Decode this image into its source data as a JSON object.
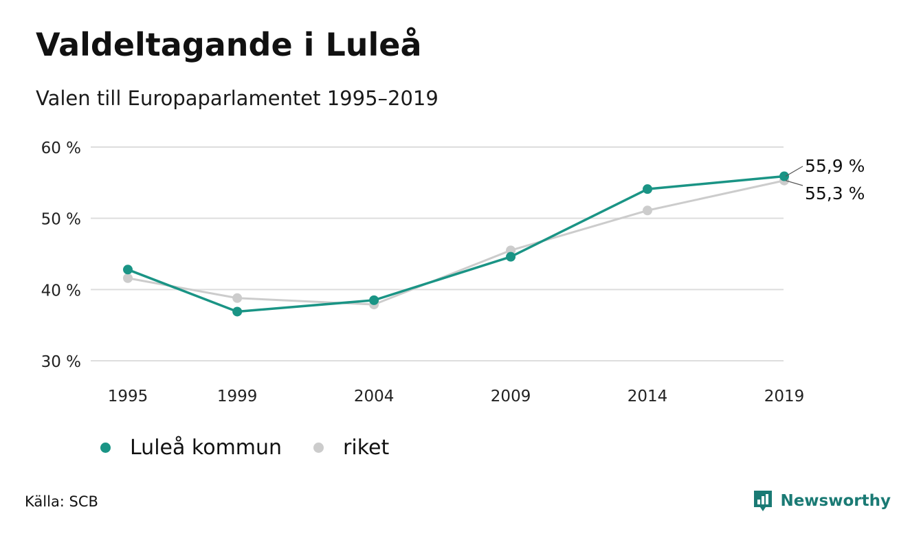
{
  "title": "Valdeltagande i Luleå",
  "subtitle": "Valen till Europaparlamentet 1995–2019",
  "source": "Källa: SCB",
  "brand": "Newsworthy",
  "colors": {
    "lulea": "#1a9485",
    "riket": "#cccccc",
    "grid": "#dddddd",
    "brand": "#1a7a74"
  },
  "chart_data": {
    "type": "line",
    "x": [
      1995,
      1999,
      2004,
      2009,
      2014,
      2019
    ],
    "x_labels": [
      "1995",
      "1999",
      "2004",
      "2009",
      "2014",
      "2019"
    ],
    "y_ticks": [
      30,
      40,
      50,
      60
    ],
    "y_tick_labels": [
      "30 %",
      "40 %",
      "50 %",
      "60 %"
    ],
    "ylim": [
      30,
      60
    ],
    "grid": true,
    "legend_placement": "bottom-left",
    "series": [
      {
        "name": "Luleå kommun",
        "color": "#1a9485",
        "values": [
          42.8,
          36.9,
          38.5,
          44.6,
          54.1,
          55.9
        ]
      },
      {
        "name": "riket",
        "color": "#cccccc",
        "values": [
          41.6,
          38.8,
          37.9,
          45.5,
          51.1,
          55.3
        ]
      }
    ],
    "end_labels": [
      "55,9 %",
      "55,3 %"
    ]
  }
}
